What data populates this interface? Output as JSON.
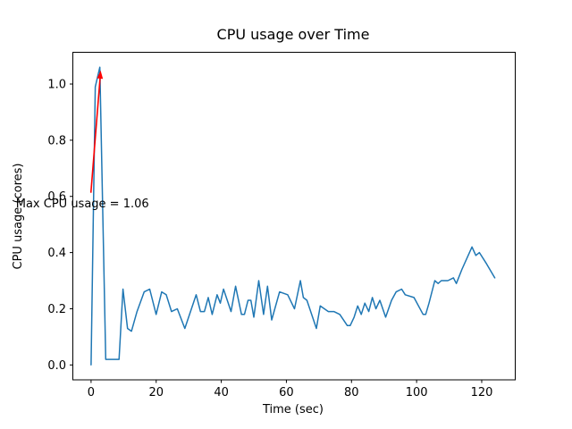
{
  "figure": {
    "background": "#ffffff"
  },
  "chart_data": {
    "type": "line",
    "title": "CPU usage over Time",
    "xlabel": "Time (sec)",
    "ylabel": "CPU usage (cores)",
    "grid": false,
    "legend": "none",
    "line_color": "#1f77b4",
    "line_width": 1.5,
    "xlim": [
      -5.6,
      130.3
    ],
    "ylim": [
      -0.053,
      1.113
    ],
    "x_tick_values": [
      0,
      20,
      40,
      60,
      80,
      100,
      120
    ],
    "x_tick_labels": [
      "0",
      "20",
      "40",
      "60",
      "80",
      "100",
      "120"
    ],
    "y_tick_values": [
      0.0,
      0.2,
      0.4,
      0.6,
      0.8,
      1.0
    ],
    "y_tick_labels": [
      "0.0",
      "0.2",
      "0.4",
      "0.6",
      "0.8",
      "1.0"
    ],
    "series": [
      {
        "name": "cpu_usage_cores",
        "points": [
          [
            0,
            0.0
          ],
          [
            1.3,
            0.99
          ],
          [
            2.7,
            1.06
          ],
          [
            4.5,
            0.02
          ],
          [
            8.6,
            0.02
          ],
          [
            9.8,
            0.27
          ],
          [
            11.2,
            0.13
          ],
          [
            12.4,
            0.12
          ],
          [
            14.1,
            0.19
          ],
          [
            16.3,
            0.26
          ],
          [
            18.0,
            0.27
          ],
          [
            20.0,
            0.18
          ],
          [
            21.7,
            0.26
          ],
          [
            23.1,
            0.25
          ],
          [
            24.7,
            0.19
          ],
          [
            26.5,
            0.2
          ],
          [
            28.8,
            0.13
          ],
          [
            32.3,
            0.25
          ],
          [
            33.6,
            0.19
          ],
          [
            34.8,
            0.19
          ],
          [
            36.0,
            0.24
          ],
          [
            37.2,
            0.18
          ],
          [
            38.7,
            0.25
          ],
          [
            39.7,
            0.22
          ],
          [
            40.7,
            0.27
          ],
          [
            43.0,
            0.19
          ],
          [
            44.4,
            0.28
          ],
          [
            46.2,
            0.18
          ],
          [
            47.1,
            0.18
          ],
          [
            48.2,
            0.23
          ],
          [
            49.1,
            0.23
          ],
          [
            50.0,
            0.17
          ],
          [
            51.5,
            0.3
          ],
          [
            53.0,
            0.18
          ],
          [
            54.2,
            0.28
          ],
          [
            55.5,
            0.16
          ],
          [
            57.9,
            0.26
          ],
          [
            60.4,
            0.25
          ],
          [
            62.5,
            0.2
          ],
          [
            64.3,
            0.3
          ],
          [
            65.2,
            0.24
          ],
          [
            66.3,
            0.23
          ],
          [
            69.2,
            0.13
          ],
          [
            70.4,
            0.21
          ],
          [
            72.9,
            0.19
          ],
          [
            74.6,
            0.19
          ],
          [
            76.4,
            0.18
          ],
          [
            78.7,
            0.14
          ],
          [
            79.6,
            0.14
          ],
          [
            80.8,
            0.17
          ],
          [
            81.9,
            0.21
          ],
          [
            83.0,
            0.18
          ],
          [
            84.1,
            0.22
          ],
          [
            85.3,
            0.19
          ],
          [
            86.4,
            0.24
          ],
          [
            87.5,
            0.2
          ],
          [
            88.7,
            0.23
          ],
          [
            90.5,
            0.17
          ],
          [
            92.3,
            0.23
          ],
          [
            93.7,
            0.26
          ],
          [
            95.4,
            0.27
          ],
          [
            96.5,
            0.25
          ],
          [
            99.2,
            0.24
          ],
          [
            102.0,
            0.18
          ],
          [
            102.8,
            0.18
          ],
          [
            103.8,
            0.22
          ],
          [
            105.6,
            0.3
          ],
          [
            106.6,
            0.29
          ],
          [
            107.6,
            0.3
          ],
          [
            109.6,
            0.3
          ],
          [
            111.3,
            0.31
          ],
          [
            112.2,
            0.29
          ],
          [
            113.9,
            0.34
          ],
          [
            117.0,
            0.42
          ],
          [
            118.2,
            0.39
          ],
          [
            119.3,
            0.4
          ],
          [
            121.5,
            0.36
          ],
          [
            124.0,
            0.31
          ]
        ]
      }
    ],
    "annotation": {
      "text": "Max CPU usage = 1.06",
      "max_value": 1.06,
      "color": "#ff0000",
      "text_xy": [
        -23.1,
        0.561
      ],
      "arrow_tail_xy": [
        -0.05,
        0.613
      ],
      "arrow_tip_xy": [
        2.95,
        1.048
      ]
    }
  }
}
